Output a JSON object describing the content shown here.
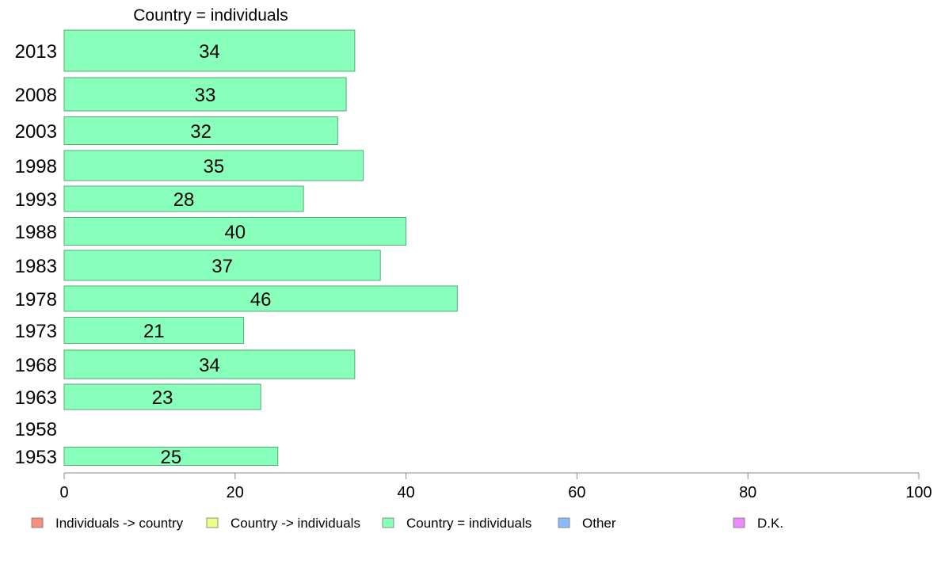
{
  "chart_data": {
    "type": "bar",
    "orientation": "horizontal",
    "title": "Country = individuals",
    "categories": [
      "2013",
      "2008",
      "2003",
      "1998",
      "1993",
      "1988",
      "1983",
      "1978",
      "1973",
      "1968",
      "1963",
      "1958",
      "1953"
    ],
    "values": [
      34,
      33,
      32,
      35,
      28,
      40,
      37,
      46,
      21,
      34,
      23,
      null,
      25
    ],
    "xlim": [
      0,
      100
    ],
    "xticks": [
      0,
      20,
      40,
      60,
      80,
      100
    ],
    "grid": false,
    "bar_color": "#88ffbb",
    "bar_stroke": "#55aa77",
    "legend": {
      "placement": "bottom",
      "items": [
        {
          "label": "Individuals -> country",
          "color": "#ff8c80"
        },
        {
          "label": "Country -> individuals",
          "color": "#eeff88"
        },
        {
          "label": "Country = individuals",
          "color": "#88ffbb"
        },
        {
          "label": "Other",
          "color": "#88bbff"
        },
        {
          "label": "D.K.",
          "color": "#ee88ff"
        }
      ]
    }
  }
}
